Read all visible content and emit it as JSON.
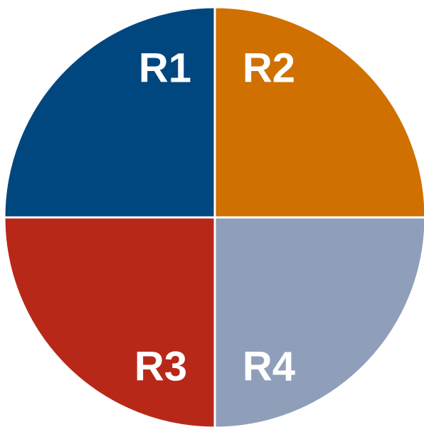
{
  "quadrants": [
    {
      "label": "R1",
      "color": "#00467f"
    },
    {
      "label": "R2",
      "color": "#d07000"
    },
    {
      "label": "R3",
      "color": "#b82818"
    },
    {
      "label": "R4",
      "color": "#8f9fba"
    }
  ]
}
